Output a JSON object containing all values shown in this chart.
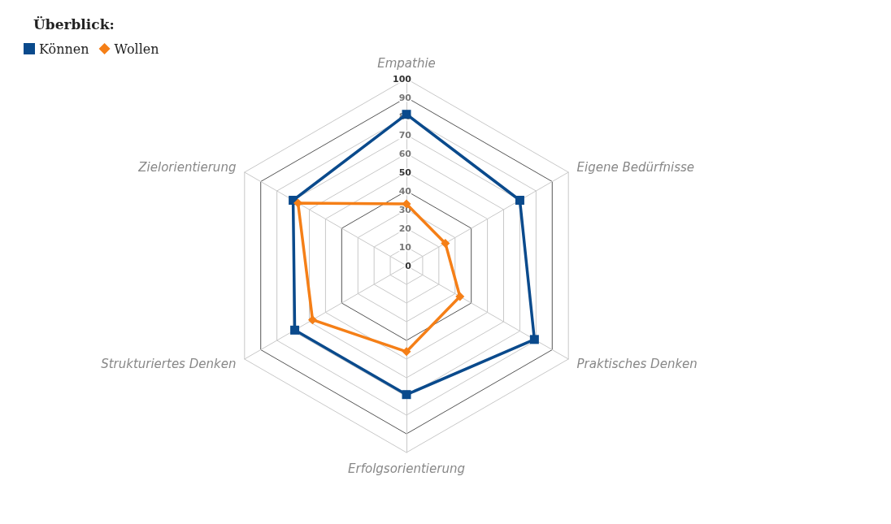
{
  "chart_data": {
    "type": "radar",
    "title": "Überblick:",
    "categories": [
      "Empathie",
      "Eigene Bedürfnisse",
      "Praktisches Denken",
      "Erfolgsorientierung",
      "Strukturiertes Denken",
      "Zielorientierung"
    ],
    "series": [
      {
        "name": "Können",
        "color": "#0a4a8c",
        "marker": "square",
        "values": [
          81,
          70,
          79,
          69,
          69,
          70
        ]
      },
      {
        "name": "Wollen",
        "color": "#f57f17",
        "marker": "diamond",
        "values": [
          33,
          24,
          33,
          46,
          58,
          67
        ]
      }
    ],
    "ylim": [
      0,
      100
    ],
    "yticks": [
      0,
      10,
      20,
      30,
      40,
      50,
      60,
      70,
      80,
      90,
      100
    ],
    "legend": "top left"
  }
}
